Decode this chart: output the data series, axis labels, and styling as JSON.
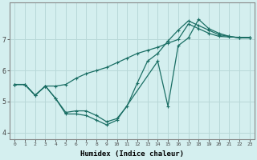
{
  "xlabel": "Humidex (Indice chaleur)",
  "background_color": "#d4efef",
  "grid_color": "#b8d8d8",
  "line_color": "#1a6e64",
  "xlim": [
    -0.5,
    23.5
  ],
  "ylim": [
    3.8,
    8.2
  ],
  "yticks": [
    4,
    5,
    6,
    7
  ],
  "xticks": [
    0,
    1,
    2,
    3,
    4,
    5,
    6,
    7,
    8,
    9,
    10,
    11,
    12,
    13,
    14,
    15,
    16,
    17,
    18,
    19,
    20,
    21,
    22,
    23
  ],
  "lines": [
    {
      "x": [
        0,
        1,
        2,
        3,
        4,
        5,
        6,
        7,
        8,
        9,
        10,
        11,
        12,
        13,
        14,
        15,
        16,
        17,
        18,
        19,
        20,
        21,
        22,
        23
      ],
      "y": [
        5.55,
        5.55,
        5.2,
        5.5,
        5.5,
        5.55,
        5.75,
        5.9,
        6.0,
        6.1,
        6.25,
        6.4,
        6.55,
        6.65,
        6.75,
        6.88,
        7.0,
        7.5,
        7.35,
        7.2,
        7.1,
        7.08,
        7.07,
        7.07
      ]
    },
    {
      "x": [
        0,
        1,
        2,
        3,
        4,
        5,
        6,
        7,
        8,
        9,
        10,
        11,
        12,
        13,
        14,
        15,
        16,
        17,
        18,
        19,
        20,
        21,
        22,
        23
      ],
      "y": [
        5.55,
        5.55,
        5.2,
        5.5,
        5.1,
        4.65,
        4.7,
        4.7,
        4.55,
        4.35,
        4.45,
        4.85,
        5.6,
        6.3,
        6.55,
        6.95,
        7.3,
        7.6,
        7.45,
        7.3,
        7.15,
        7.1,
        7.05,
        7.05
      ]
    },
    {
      "x": [
        0,
        1,
        2,
        3,
        4,
        5,
        6,
        7,
        8,
        9,
        10,
        14,
        15,
        16,
        17,
        18,
        19,
        20,
        21,
        22,
        23
      ],
      "y": [
        5.55,
        5.55,
        5.2,
        5.5,
        5.1,
        4.6,
        4.6,
        4.55,
        4.4,
        4.25,
        4.4,
        6.3,
        4.85,
        6.8,
        7.05,
        7.65,
        7.35,
        7.2,
        7.1,
        7.05,
        7.05
      ]
    }
  ]
}
